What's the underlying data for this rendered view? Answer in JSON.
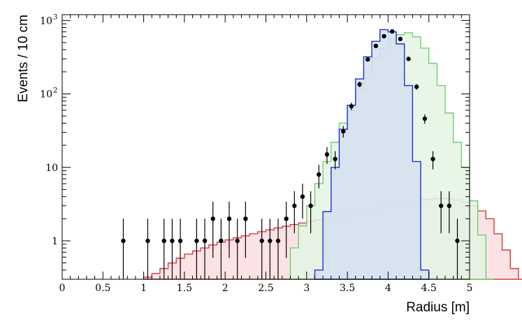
{
  "chart_data": {
    "type": "histogram",
    "title": "",
    "xlabel": "Radius [m]",
    "ylabel": "Events / 10 cm",
    "xlim": [
      0,
      5
    ],
    "ylim": [
      0.3,
      1200
    ],
    "y_scale": "log",
    "grid": false,
    "legend": "none",
    "bin_width": 0.1,
    "x_ticks": [
      "0",
      "0.5",
      "1",
      "1.5",
      "2",
      "2.5",
      "3",
      "3.5",
      "4",
      "4.5",
      "5"
    ],
    "y_ticks": [
      {
        "value": 1,
        "label": "1"
      },
      {
        "value": 10,
        "label": "10"
      },
      {
        "value": 100,
        "base": "10",
        "exp": "2"
      },
      {
        "value": 1000,
        "base": "10",
        "exp": "3"
      }
    ],
    "series": [
      {
        "kind": "step-filled",
        "color": "#d43c3c",
        "fill": "#fadde1",
        "bin_edges_start": 1.0,
        "values": [
          0.32,
          0.36,
          0.42,
          0.5,
          0.58,
          0.66,
          0.73,
          0.8,
          0.88,
          0.96,
          1.03,
          1.1,
          1.17,
          1.25,
          1.33,
          1.41,
          1.5,
          1.58,
          1.67,
          1.75,
          1.84,
          1.92,
          2.01,
          2.1,
          2.2,
          2.32,
          2.45,
          2.6,
          2.75,
          2.9,
          3.05,
          3.2,
          3.35,
          3.5,
          3.62,
          3.72,
          3.78,
          3.75,
          3.6,
          3.35,
          3.0,
          2.55,
          2.0,
          1.25,
          0.75,
          0.42,
          0.3
        ]
      },
      {
        "kind": "step-filled",
        "color": "#6fcf6f",
        "fill": "#e4f4e4",
        "bin_edges_start": 2.8,
        "values": [
          0.8,
          1.6,
          3.0,
          6.0,
          12.0,
          22.0,
          40.0,
          70.0,
          115.0,
          200.0,
          310.0,
          420.0,
          560.0,
          640.0,
          680.0,
          600.0,
          420.0,
          260.0,
          130.0,
          55.0,
          22.0,
          10.0,
          3.5,
          1.2,
          0.3
        ]
      },
      {
        "kind": "step-filled",
        "color": "#1f2fd6",
        "fill": "#d4e1f1",
        "bin_edges_start": 3.1,
        "values": [
          0.4,
          2.5,
          10.0,
          33.0,
          70.0,
          160.0,
          320.0,
          520.0,
          750.0,
          700.0,
          480.0,
          130.0,
          12.0,
          0.4
        ]
      },
      {
        "kind": "points",
        "color": "#000000",
        "points": [
          {
            "x": 0.75,
            "y": 1
          },
          {
            "x": 1.05,
            "y": 1
          },
          {
            "x": 1.25,
            "y": 1
          },
          {
            "x": 1.35,
            "y": 1
          },
          {
            "x": 1.45,
            "y": 1
          },
          {
            "x": 1.65,
            "y": 1
          },
          {
            "x": 1.75,
            "y": 1
          },
          {
            "x": 1.85,
            "y": 2
          },
          {
            "x": 1.95,
            "y": 1
          },
          {
            "x": 2.05,
            "y": 2
          },
          {
            "x": 2.15,
            "y": 1
          },
          {
            "x": 2.25,
            "y": 2
          },
          {
            "x": 2.45,
            "y": 1
          },
          {
            "x": 2.55,
            "y": 1
          },
          {
            "x": 2.65,
            "y": 1
          },
          {
            "x": 2.75,
            "y": 2
          },
          {
            "x": 2.85,
            "y": 3
          },
          {
            "x": 2.95,
            "y": 4
          },
          {
            "x": 3.05,
            "y": 3
          },
          {
            "x": 3.15,
            "y": 8
          },
          {
            "x": 3.25,
            "y": 15
          },
          {
            "x": 3.35,
            "y": 13
          },
          {
            "x": 3.45,
            "y": 31
          },
          {
            "x": 3.55,
            "y": 68
          },
          {
            "x": 3.65,
            "y": 135
          },
          {
            "x": 3.75,
            "y": 295
          },
          {
            "x": 3.85,
            "y": 450
          },
          {
            "x": 3.95,
            "y": 610
          },
          {
            "x": 4.05,
            "y": 710
          },
          {
            "x": 4.15,
            "y": 560
          },
          {
            "x": 4.25,
            "y": 300
          },
          {
            "x": 4.35,
            "y": 125
          },
          {
            "x": 4.45,
            "y": 46
          },
          {
            "x": 4.55,
            "y": 13
          },
          {
            "x": 4.65,
            "y": 3
          },
          {
            "x": 4.75,
            "y": 3
          },
          {
            "x": 4.85,
            "y": 1
          }
        ]
      }
    ]
  }
}
